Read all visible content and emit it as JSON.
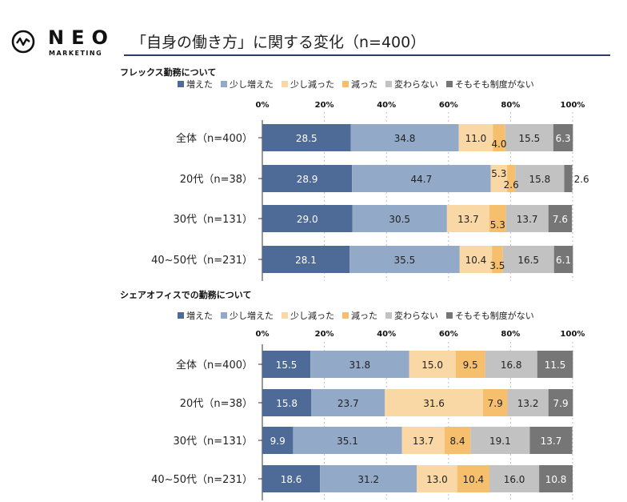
{
  "brand": {
    "name": "NEO",
    "sub": "MARKETING"
  },
  "page_title": "「自身の働き方」に関する変化（n=400）",
  "colors": [
    "#4e6a96",
    "#93a9c8",
    "#fad8a6",
    "#f6bf6e",
    "#c2c2c2",
    "#767676"
  ],
  "chart_data": [
    {
      "type": "bar",
      "orientation": "horizontal",
      "stacked": true,
      "title": "フレックス勤務について",
      "legend": [
        "増えた",
        "少し増えた",
        "少し減った",
        "減った",
        "変わらない",
        "そもそも制度がない"
      ],
      "xlim": [
        0,
        100
      ],
      "ticks": [
        "0%",
        "20%",
        "40%",
        "60%",
        "80%",
        "100%"
      ],
      "categories": [
        "全体（n=400）",
        "20代（n=38）",
        "30代（n=131）",
        "40~50代（n=231）"
      ],
      "rows": [
        {
          "label": "全体（n=400）",
          "values": [
            28.5,
            34.8,
            11.0,
            4.0,
            15.5,
            6.3
          ],
          "labels": [
            "28.5",
            "34.8",
            "11.0",
            "4.0",
            "15.5",
            "6.3"
          ]
        },
        {
          "label": "20代（n=38）",
          "values": [
            28.9,
            44.7,
            5.3,
            2.6,
            15.8,
            2.6
          ],
          "labels": [
            "28.9",
            "44.7",
            "5.3",
            "2.6",
            "15.8",
            "2.6"
          ]
        },
        {
          "label": "30代（n=131）",
          "values": [
            29.0,
            30.5,
            13.7,
            5.3,
            13.7,
            7.6
          ],
          "labels": [
            "29.0",
            "30.5",
            "13.7",
            "5.3",
            "13.7",
            "7.6"
          ]
        },
        {
          "label": "40~50代（n=231）",
          "values": [
            28.1,
            35.5,
            10.4,
            3.5,
            16.5,
            6.1
          ],
          "labels": [
            "28.1",
            "35.5",
            "10.4",
            "3.5",
            "16.5",
            "6.1"
          ]
        }
      ]
    },
    {
      "type": "bar",
      "orientation": "horizontal",
      "stacked": true,
      "title": "シェアオフィスでの勤務について",
      "legend": [
        "増えた",
        "少し増えた",
        "少し減った",
        "減った",
        "変わらない",
        "そもそも制度がない"
      ],
      "xlim": [
        0,
        100
      ],
      "ticks": [
        "0%",
        "20%",
        "40%",
        "60%",
        "80%",
        "100%"
      ],
      "categories": [
        "全体（n=400）",
        "20代（n=38）",
        "30代（n=131）",
        "40~50代（n=231）"
      ],
      "rows": [
        {
          "label": "全体（n=400）",
          "values": [
            15.5,
            31.8,
            15.0,
            9.5,
            16.8,
            11.5
          ],
          "labels": [
            "15.5",
            "31.8",
            "15.0",
            "9.5",
            "16.8",
            "11.5"
          ]
        },
        {
          "label": "20代（n=38）",
          "values": [
            15.8,
            23.7,
            31.6,
            7.9,
            13.2,
            7.9
          ],
          "labels": [
            "15.8",
            "23.7",
            "31.6",
            "7.9",
            "13.2",
            "7.9"
          ]
        },
        {
          "label": "30代（n=131）",
          "values": [
            9.9,
            35.1,
            13.7,
            8.4,
            19.1,
            13.7
          ],
          "labels": [
            "9.9",
            "35.1",
            "13.7",
            "8.4",
            "19.1",
            "13.7"
          ]
        },
        {
          "label": "40~50代（n=231）",
          "values": [
            18.6,
            31.2,
            13.0,
            10.4,
            16.0,
            10.8
          ],
          "labels": [
            "18.6",
            "31.2",
            "13.0",
            "10.4",
            "16.0",
            "10.8"
          ]
        }
      ]
    }
  ]
}
